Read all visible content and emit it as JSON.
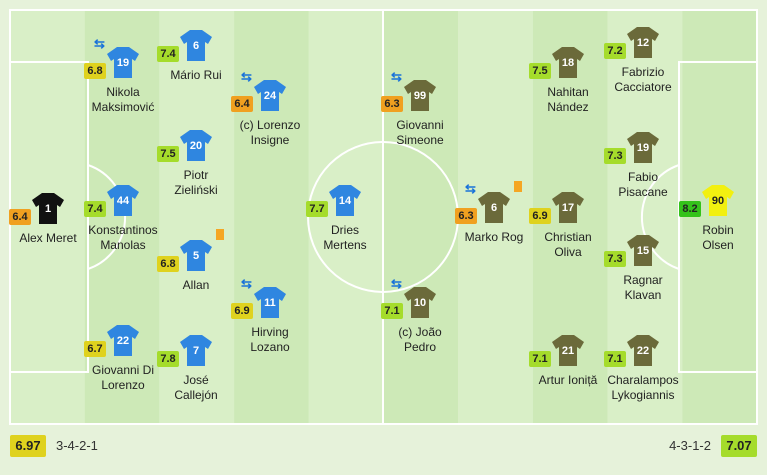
{
  "home": {
    "rating": "6.97",
    "formation": "3-4-2-1",
    "players": [
      {
        "number": "1",
        "name": [
          "Alex Meret"
        ],
        "rating": "6.4"
      },
      {
        "number": "19",
        "name": [
          "Nikola",
          "Maksimović"
        ],
        "rating": "6.8"
      },
      {
        "number": "44",
        "name": [
          "Konstantinos",
          "Manolas"
        ],
        "rating": "7.4"
      },
      {
        "number": "22",
        "name": [
          "Giovanni Di",
          "Lorenzo"
        ],
        "rating": "6.7"
      },
      {
        "number": "6",
        "name": [
          "Mário Rui"
        ],
        "rating": "7.4"
      },
      {
        "number": "20",
        "name": [
          "Piotr",
          "Zieliński"
        ],
        "rating": "7.5"
      },
      {
        "number": "5",
        "name": [
          "Allan"
        ],
        "rating": "6.8"
      },
      {
        "number": "7",
        "name": [
          "José",
          "Callejón"
        ],
        "rating": "7.8"
      },
      {
        "number": "24",
        "name": [
          "(c) Lorenzo",
          "Insigne"
        ],
        "rating": "6.4"
      },
      {
        "number": "11",
        "name": [
          "Hirving",
          "Lozano"
        ],
        "rating": "6.9"
      },
      {
        "number": "14",
        "name": [
          "Dries",
          "Mertens"
        ],
        "rating": "7.7"
      }
    ]
  },
  "away": {
    "rating": "7.07",
    "formation": "4-3-1-2",
    "players": [
      {
        "number": "99",
        "name": [
          "Giovanni",
          "Simeone"
        ],
        "rating": "6.3"
      },
      {
        "number": "10",
        "name": [
          "(c) João",
          "Pedro"
        ],
        "rating": "7.1"
      },
      {
        "number": "6",
        "name": [
          "Marko Rog"
        ],
        "rating": "6.3"
      },
      {
        "number": "18",
        "name": [
          "Nahitan",
          "Nández"
        ],
        "rating": "7.5"
      },
      {
        "number": "17",
        "name": [
          "Christian",
          "Oliva"
        ],
        "rating": "6.9"
      },
      {
        "number": "21",
        "name": [
          "Artur Ioniță"
        ],
        "rating": "7.1"
      },
      {
        "number": "12",
        "name": [
          "Fabrizio",
          "Cacciatore"
        ],
        "rating": "7.2"
      },
      {
        "number": "19",
        "name": [
          "Fabio",
          "Pisacane"
        ],
        "rating": "7.3"
      },
      {
        "number": "15",
        "name": [
          "Ragnar",
          "Klavan"
        ],
        "rating": "7.3"
      },
      {
        "number": "22",
        "name": [
          "Charalampos",
          "Lykogiannis"
        ],
        "rating": "7.1"
      },
      {
        "number": "90",
        "name": [
          "Robin",
          "Olsen"
        ],
        "rating": "8.2"
      }
    ]
  }
}
